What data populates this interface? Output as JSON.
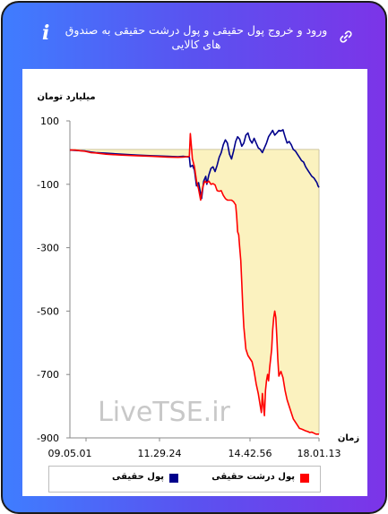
{
  "header": {
    "title": "ورود و خروج پول حقیقی و پول درشت حقیقی به صندوق های کالایی"
  },
  "colors": {
    "series_real": "#00008b",
    "series_large_real": "#ff0000",
    "area_fill": "#fbf2bf"
  },
  "chart_data": {
    "type": "line",
    "title": "",
    "ylabel": "میلیارد تومان",
    "xlabel": "زمان",
    "ylim": [
      -900,
      100
    ],
    "yticks": [
      100,
      -100,
      -300,
      -500,
      -700,
      -900
    ],
    "xticks": [
      "09.05.01",
      "11.29.24",
      "14.42.56",
      "18.01.13"
    ],
    "watermark": "LiveTSE.ir",
    "legend_position": "bottom",
    "series": [
      {
        "name": "پول حقیقی",
        "color": "#00008b",
        "points": [
          [
            0,
            8
          ],
          [
            5,
            7
          ],
          [
            10,
            6
          ],
          [
            15,
            5
          ],
          [
            20,
            2
          ],
          [
            25,
            0
          ],
          [
            35,
            -2
          ],
          [
            50,
            -5
          ],
          [
            65,
            -8
          ],
          [
            80,
            -10
          ],
          [
            95,
            -12
          ],
          [
            105,
            -13
          ],
          [
            110,
            -12
          ],
          [
            116,
            -14
          ],
          [
            117,
            -45
          ],
          [
            119,
            -40
          ],
          [
            121,
            -55
          ],
          [
            123,
            -105
          ],
          [
            125,
            -95
          ],
          [
            127,
            -130
          ],
          [
            128,
            -145
          ],
          [
            130,
            -90
          ],
          [
            132,
            -75
          ],
          [
            133,
            -100
          ],
          [
            135,
            -70
          ],
          [
            137,
            -50
          ],
          [
            139,
            -45
          ],
          [
            141,
            -60
          ],
          [
            143,
            -40
          ],
          [
            145,
            -15
          ],
          [
            147,
            0
          ],
          [
            149,
            25
          ],
          [
            151,
            40
          ],
          [
            153,
            30
          ],
          [
            155,
            -5
          ],
          [
            157,
            -20
          ],
          [
            159,
            5
          ],
          [
            161,
            35
          ],
          [
            163,
            50
          ],
          [
            165,
            42
          ],
          [
            167,
            20
          ],
          [
            169,
            30
          ],
          [
            171,
            55
          ],
          [
            173,
            62
          ],
          [
            175,
            40
          ],
          [
            177,
            30
          ],
          [
            179,
            45
          ],
          [
            181,
            30
          ],
          [
            183,
            15
          ],
          [
            185,
            10
          ],
          [
            187,
            0
          ],
          [
            189,
            15
          ],
          [
            191,
            30
          ],
          [
            193,
            50
          ],
          [
            195,
            60
          ],
          [
            197,
            70
          ],
          [
            199,
            55
          ],
          [
            201,
            62
          ],
          [
            203,
            70
          ],
          [
            205,
            68
          ],
          [
            207,
            72
          ],
          [
            209,
            50
          ],
          [
            211,
            30
          ],
          [
            213,
            35
          ],
          [
            215,
            25
          ],
          [
            217,
            10
          ],
          [
            219,
            5
          ],
          [
            221,
            -5
          ],
          [
            223,
            -15
          ],
          [
            225,
            -25
          ],
          [
            227,
            -30
          ],
          [
            229,
            -45
          ],
          [
            231,
            -55
          ],
          [
            233,
            -65
          ],
          [
            235,
            -75
          ],
          [
            237,
            -80
          ],
          [
            239,
            -90
          ],
          [
            240,
            -95
          ],
          [
            241,
            -105
          ],
          [
            242,
            -110
          ]
        ]
      },
      {
        "name": "پول درشت حقیقی",
        "color": "#ff0000",
        "points": [
          [
            0,
            8
          ],
          [
            5,
            8
          ],
          [
            10,
            6
          ],
          [
            15,
            4
          ],
          [
            20,
            0
          ],
          [
            25,
            -1
          ],
          [
            35,
            -5
          ],
          [
            50,
            -8
          ],
          [
            65,
            -10
          ],
          [
            80,
            -12
          ],
          [
            95,
            -14
          ],
          [
            105,
            -15
          ],
          [
            110,
            -14
          ],
          [
            114,
            -13
          ],
          [
            116,
            -12
          ],
          [
            117,
            60
          ],
          [
            118,
            20
          ],
          [
            119,
            -20
          ],
          [
            121,
            -45
          ],
          [
            123,
            -90
          ],
          [
            125,
            -115
          ],
          [
            127,
            -150
          ],
          [
            129,
            -110
          ],
          [
            131,
            -90
          ],
          [
            133,
            -95
          ],
          [
            135,
            -90
          ],
          [
            137,
            -100
          ],
          [
            139,
            -98
          ],
          [
            141,
            -102
          ],
          [
            143,
            -120
          ],
          [
            145,
            -122
          ],
          [
            147,
            -120
          ],
          [
            149,
            -135
          ],
          [
            151,
            -145
          ],
          [
            153,
            -150
          ],
          [
            155,
            -150
          ],
          [
            157,
            -150
          ],
          [
            159,
            -155
          ],
          [
            160,
            -160
          ],
          [
            161,
            -165
          ],
          [
            162,
            -200
          ],
          [
            163,
            -250
          ],
          [
            164,
            -260
          ],
          [
            165,
            -300
          ],
          [
            166,
            -340
          ],
          [
            167,
            -410
          ],
          [
            168,
            -490
          ],
          [
            169,
            -550
          ],
          [
            171,
            -620
          ],
          [
            173,
            -640
          ],
          [
            175,
            -650
          ],
          [
            177,
            -660
          ],
          [
            179,
            -690
          ],
          [
            181,
            -730
          ],
          [
            183,
            -760
          ],
          [
            185,
            -800
          ],
          [
            186,
            -820
          ],
          [
            187,
            -760
          ],
          [
            188,
            -800
          ],
          [
            189,
            -830
          ],
          [
            190,
            -750
          ],
          [
            191,
            -720
          ],
          [
            192,
            -700
          ],
          [
            193,
            -720
          ],
          [
            194,
            -680
          ],
          [
            196,
            -620
          ],
          [
            197,
            -560
          ],
          [
            198,
            -520
          ],
          [
            199,
            -500
          ],
          [
            200,
            -520
          ],
          [
            201,
            -580
          ],
          [
            202,
            -650
          ],
          [
            203,
            -705
          ],
          [
            205,
            -690
          ],
          [
            207,
            -710
          ],
          [
            209,
            -750
          ],
          [
            211,
            -780
          ],
          [
            213,
            -800
          ],
          [
            215,
            -820
          ],
          [
            217,
            -840
          ],
          [
            219,
            -850
          ],
          [
            221,
            -860
          ],
          [
            223,
            -870
          ],
          [
            225,
            -872
          ],
          [
            227,
            -875
          ],
          [
            229,
            -878
          ],
          [
            231,
            -880
          ],
          [
            233,
            -883
          ],
          [
            235,
            -882
          ],
          [
            237,
            -885
          ],
          [
            239,
            -888
          ],
          [
            242,
            -888
          ]
        ]
      }
    ],
    "x_range": [
      0,
      242
    ],
    "reference_level": 10
  }
}
